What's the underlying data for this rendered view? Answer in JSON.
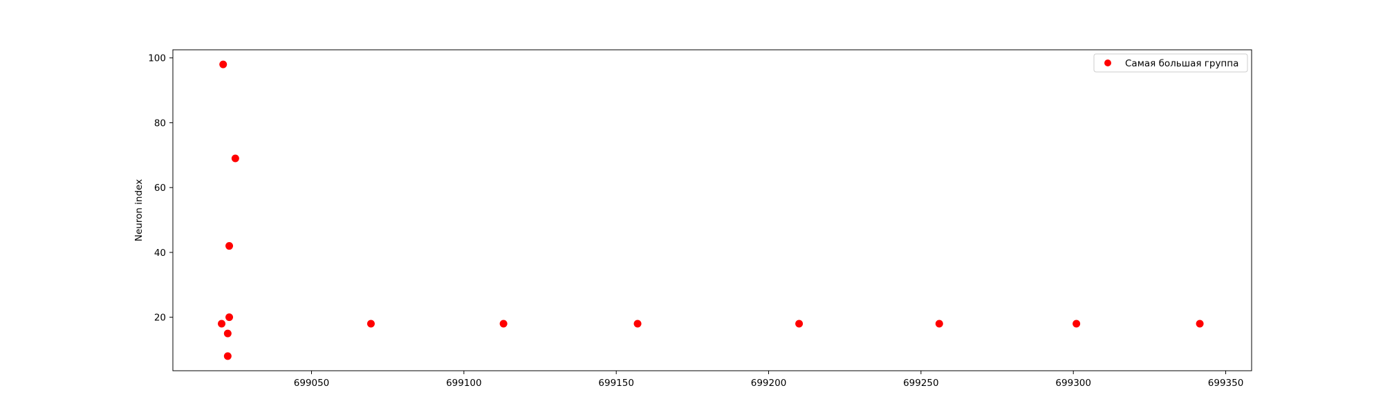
{
  "chart_data": {
    "type": "scatter",
    "title": "",
    "xlabel": "",
    "ylabel": "Neuron index",
    "xlim": [
      699004.5,
      699358.5
    ],
    "ylim": [
      3.5,
      102.5
    ],
    "xticks": [
      699050,
      699100,
      699150,
      699200,
      699250,
      699300,
      699350
    ],
    "xtick_labels": [
      "699050",
      "699100",
      "699150",
      "699200",
      "699250",
      "699300",
      "699350"
    ],
    "yticks": [
      20,
      40,
      60,
      80,
      100
    ],
    "ytick_labels": [
      "20",
      "40",
      "60",
      "80",
      "100"
    ],
    "grid": false,
    "legend_position": "top-right",
    "series": [
      {
        "name": "Самая большая группа",
        "color": "#ff0000",
        "marker": "circle",
        "points": [
          {
            "x": 699021,
            "y": 98
          },
          {
            "x": 699025,
            "y": 69
          },
          {
            "x": 699023,
            "y": 42
          },
          {
            "x": 699023,
            "y": 20
          },
          {
            "x": 699020.5,
            "y": 18
          },
          {
            "x": 699022.5,
            "y": 15
          },
          {
            "x": 699022.5,
            "y": 8
          },
          {
            "x": 699069.5,
            "y": 18
          },
          {
            "x": 699113,
            "y": 18
          },
          {
            "x": 699157,
            "y": 18
          },
          {
            "x": 699210,
            "y": 18
          },
          {
            "x": 699256,
            "y": 18
          },
          {
            "x": 699301,
            "y": 18
          },
          {
            "x": 699341.5,
            "y": 18
          }
        ]
      }
    ]
  }
}
